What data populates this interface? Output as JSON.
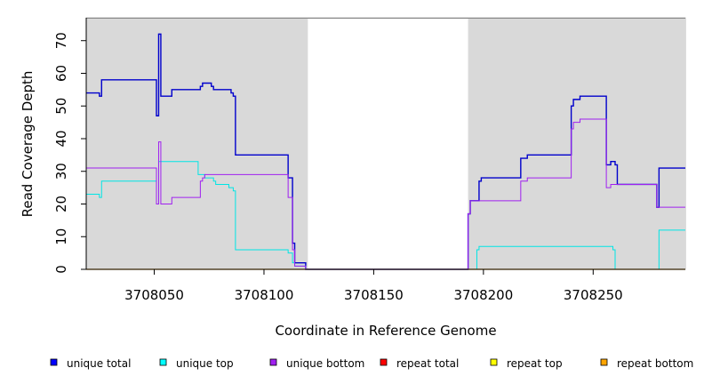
{
  "chart_data": {
    "type": "line",
    "xlabel": "Coordinate in Reference Genome",
    "ylabel": "Read Coverage Depth",
    "xlim": [
      3708019,
      3708292
    ],
    "ylim": [
      0,
      77
    ],
    "x_ticks": [
      3708050,
      3708100,
      3708150,
      3708200,
      3708250
    ],
    "y_ticks": [
      0,
      10,
      20,
      30,
      40,
      50,
      60,
      70
    ],
    "shaded_regions": [
      [
        3708019,
        3708120
      ],
      [
        3708193,
        3708292
      ]
    ],
    "shade_color": "#d9d9d9",
    "series": [
      {
        "name": "unique total",
        "color": "#0000cc",
        "width": 1.4,
        "points": [
          [
            3708019,
            54
          ],
          [
            3708025,
            54
          ],
          [
            3708025,
            53
          ],
          [
            3708026,
            53
          ],
          [
            3708026,
            58
          ],
          [
            3708051,
            58
          ],
          [
            3708051,
            47
          ],
          [
            3708052,
            47
          ],
          [
            3708052,
            72
          ],
          [
            3708053,
            72
          ],
          [
            3708053,
            53
          ],
          [
            3708058,
            53
          ],
          [
            3708058,
            55
          ],
          [
            3708071,
            55
          ],
          [
            3708071,
            56
          ],
          [
            3708072,
            56
          ],
          [
            3708072,
            57
          ],
          [
            3708076,
            57
          ],
          [
            3708076,
            56
          ],
          [
            3708077,
            56
          ],
          [
            3708077,
            55
          ],
          [
            3708085,
            55
          ],
          [
            3708085,
            54
          ],
          [
            3708086,
            54
          ],
          [
            3708086,
            53
          ],
          [
            3708087,
            53
          ],
          [
            3708087,
            35
          ],
          [
            3708111,
            35
          ],
          [
            3708111,
            28
          ],
          [
            3708113,
            28
          ],
          [
            3708113,
            8
          ],
          [
            3708114,
            8
          ],
          [
            3708114,
            2
          ],
          [
            3708119,
            2
          ],
          [
            3708119,
            0
          ],
          [
            3708193,
            0
          ],
          [
            3708193,
            17
          ],
          [
            3708194,
            17
          ],
          [
            3708194,
            21
          ],
          [
            3708198,
            21
          ],
          [
            3708198,
            27
          ],
          [
            3708199,
            27
          ],
          [
            3708199,
            28
          ],
          [
            3708217,
            28
          ],
          [
            3708217,
            34
          ],
          [
            3708220,
            34
          ],
          [
            3708220,
            35
          ],
          [
            3708240,
            35
          ],
          [
            3708240,
            50
          ],
          [
            3708241,
            50
          ],
          [
            3708241,
            52
          ],
          [
            3708244,
            52
          ],
          [
            3708244,
            53
          ],
          [
            3708256,
            53
          ],
          [
            3708256,
            32
          ],
          [
            3708258,
            32
          ],
          [
            3708258,
            33
          ],
          [
            3708260,
            33
          ],
          [
            3708260,
            32
          ],
          [
            3708261,
            32
          ],
          [
            3708261,
            26
          ],
          [
            3708279,
            26
          ],
          [
            3708279,
            19
          ],
          [
            3708280,
            19
          ],
          [
            3708280,
            31
          ],
          [
            3708292,
            31
          ]
        ]
      },
      {
        "name": "unique top",
        "color": "#00e5e5",
        "width": 1,
        "points": [
          [
            3708019,
            23
          ],
          [
            3708025,
            23
          ],
          [
            3708025,
            22
          ],
          [
            3708026,
            22
          ],
          [
            3708026,
            27
          ],
          [
            3708051,
            27
          ],
          [
            3708051,
            20
          ],
          [
            3708052,
            20
          ],
          [
            3708052,
            33
          ],
          [
            3708070,
            33
          ],
          [
            3708070,
            29
          ],
          [
            3708073,
            29
          ],
          [
            3708073,
            28
          ],
          [
            3708077,
            28
          ],
          [
            3708077,
            27
          ],
          [
            3708078,
            27
          ],
          [
            3708078,
            26
          ],
          [
            3708084,
            26
          ],
          [
            3708084,
            25
          ],
          [
            3708086,
            25
          ],
          [
            3708086,
            24
          ],
          [
            3708087,
            24
          ],
          [
            3708087,
            6
          ],
          [
            3708111,
            6
          ],
          [
            3708111,
            5
          ],
          [
            3708113,
            5
          ],
          [
            3708113,
            2
          ],
          [
            3708114,
            2
          ],
          [
            3708114,
            1
          ],
          [
            3708119,
            1
          ],
          [
            3708119,
            0
          ],
          [
            3708197,
            0
          ],
          [
            3708197,
            6
          ],
          [
            3708198,
            6
          ],
          [
            3708198,
            7
          ],
          [
            3708259,
            7
          ],
          [
            3708259,
            6
          ],
          [
            3708260,
            6
          ],
          [
            3708260,
            0
          ],
          [
            3708280,
            0
          ],
          [
            3708280,
            12
          ],
          [
            3708292,
            12
          ]
        ]
      },
      {
        "name": "unique bottom",
        "color": "#a020f0",
        "width": 1,
        "points": [
          [
            3708019,
            31
          ],
          [
            3708051,
            31
          ],
          [
            3708051,
            20
          ],
          [
            3708052,
            20
          ],
          [
            3708052,
            39
          ],
          [
            3708053,
            39
          ],
          [
            3708053,
            20
          ],
          [
            3708058,
            20
          ],
          [
            3708058,
            22
          ],
          [
            3708071,
            22
          ],
          [
            3708071,
            27
          ],
          [
            3708072,
            27
          ],
          [
            3708072,
            28
          ],
          [
            3708073,
            28
          ],
          [
            3708073,
            29
          ],
          [
            3708111,
            29
          ],
          [
            3708111,
            22
          ],
          [
            3708113,
            22
          ],
          [
            3708113,
            6
          ],
          [
            3708114,
            6
          ],
          [
            3708114,
            1
          ],
          [
            3708119,
            1
          ],
          [
            3708119,
            0
          ],
          [
            3708193,
            0
          ],
          [
            3708193,
            17
          ],
          [
            3708194,
            17
          ],
          [
            3708194,
            21
          ],
          [
            3708217,
            21
          ],
          [
            3708217,
            27
          ],
          [
            3708220,
            27
          ],
          [
            3708220,
            28
          ],
          [
            3708240,
            28
          ],
          [
            3708240,
            43
          ],
          [
            3708241,
            43
          ],
          [
            3708241,
            45
          ],
          [
            3708244,
            45
          ],
          [
            3708244,
            46
          ],
          [
            3708256,
            46
          ],
          [
            3708256,
            25
          ],
          [
            3708258,
            25
          ],
          [
            3708258,
            26
          ],
          [
            3708279,
            26
          ],
          [
            3708279,
            19
          ],
          [
            3708292,
            19
          ]
        ]
      },
      {
        "name": "repeat total",
        "color": "#ff0000",
        "width": 1,
        "points": [
          [
            3708019,
            0
          ],
          [
            3708292,
            0
          ]
        ]
      },
      {
        "name": "repeat top",
        "color": "#ffff00",
        "width": 1,
        "points": [
          [
            3708019,
            0
          ],
          [
            3708292,
            0
          ]
        ]
      },
      {
        "name": "repeat bottom",
        "color": "#ffa500",
        "width": 1.2,
        "points": [
          [
            3708019,
            0
          ],
          [
            3708292,
            0
          ]
        ]
      }
    ],
    "legend": {
      "placement": "bottom",
      "entries": [
        {
          "label": "unique total",
          "color": "#0000ff"
        },
        {
          "label": "unique top",
          "color": "#00ffff"
        },
        {
          "label": "unique bottom",
          "color": "#a020f0"
        },
        {
          "label": "repeat total",
          "color": "#ff0000"
        },
        {
          "label": "repeat top",
          "color": "#ffff00"
        },
        {
          "label": "repeat bottom",
          "color": "#ffa500"
        }
      ]
    }
  }
}
